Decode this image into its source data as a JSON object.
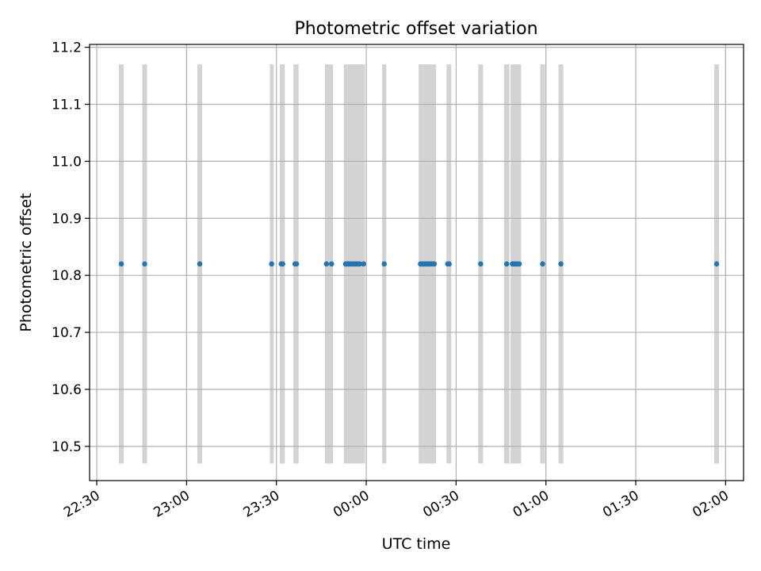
{
  "chart_data": {
    "type": "scatter",
    "title": "Photometric offset variation",
    "xlabel": "UTC time",
    "ylabel": "Photometric offset",
    "x_axis_type": "time",
    "x_start_date": "2023-01-01",
    "xlim": [
      "22:27:36",
      "02:06:00"
    ],
    "ylim": [
      10.44,
      11.205
    ],
    "grid": true,
    "x_ticks": [
      "22:30",
      "23:00",
      "23:30",
      "00:00",
      "00:30",
      "01:00",
      "01:30",
      "02:00"
    ],
    "y_ticks": [
      10.5,
      10.6,
      10.7,
      10.8,
      10.9,
      11.0,
      11.1,
      11.2
    ],
    "y_tick_labels": [
      "10.5",
      "10.6",
      "10.7",
      "10.8",
      "10.9",
      "11.0",
      "11.1",
      "11.2"
    ],
    "colors": {
      "points": "#1f77b4",
      "spans": "#d3d3d3",
      "grid": "#b0b0b0"
    },
    "span_range_y": [
      10.47,
      11.17
    ],
    "spans": [
      [
        "22:37:24",
        "22:39:00"
      ],
      [
        "22:45:12",
        "22:46:48"
      ],
      [
        "23:03:36",
        "23:05:12"
      ],
      [
        "23:27:48",
        "23:29:06"
      ],
      [
        "23:31:06",
        "23:32:48"
      ],
      [
        "23:35:42",
        "23:37:24"
      ],
      [
        "23:46:12",
        "23:48:54"
      ],
      [
        "23:52:30",
        "23:59:36"
      ],
      [
        "00:05:18",
        "00:06:42"
      ],
      [
        "00:17:30",
        "00:23:18"
      ],
      [
        "00:26:48",
        "00:28:24"
      ],
      [
        "00:37:24",
        "00:39:00"
      ],
      [
        "00:46:00",
        "00:47:48"
      ],
      [
        "00:48:12",
        "00:51:42"
      ],
      [
        "00:58:06",
        "00:59:42"
      ],
      [
        "01:04:12",
        "01:05:48"
      ]
    ],
    "span_far": [
      "01:56:12",
      "01:57:48"
    ],
    "x": [
      "22:38:12",
      "22:46:00",
      "23:04:24",
      "23:28:24",
      "23:31:36",
      "23:32:06",
      "23:36:12",
      "23:36:42",
      "23:46:42",
      "23:48:24",
      "23:53:06",
      "23:53:36",
      "23:54:06",
      "23:54:36",
      "23:55:06",
      "23:55:42",
      "23:56:12",
      "23:56:42",
      "23:57:12",
      "23:57:48",
      "23:59:06",
      "00:06:00",
      "00:18:06",
      "00:18:36",
      "00:19:06",
      "00:19:36",
      "00:20:06",
      "00:20:36",
      "00:21:06",
      "00:21:36",
      "00:22:06",
      "00:22:42",
      "00:27:12",
      "00:27:42",
      "00:38:12",
      "00:46:54",
      "00:48:48",
      "00:49:24",
      "00:49:54",
      "00:50:24",
      "00:51:06",
      "00:58:54",
      "01:05:00",
      "01:57:00"
    ],
    "y": [
      10.82,
      10.82,
      10.82,
      10.82,
      10.82,
      10.82,
      10.82,
      10.82,
      10.82,
      10.82,
      10.82,
      10.82,
      10.82,
      10.82,
      10.82,
      10.82,
      10.82,
      10.82,
      10.82,
      10.82,
      10.82,
      10.82,
      10.82,
      10.82,
      10.82,
      10.82,
      10.82,
      10.82,
      10.82,
      10.82,
      10.82,
      10.82,
      10.82,
      10.82,
      10.82,
      10.82,
      10.82,
      10.82,
      10.82,
      10.82,
      10.82,
      10.82,
      10.82,
      10.82
    ]
  }
}
